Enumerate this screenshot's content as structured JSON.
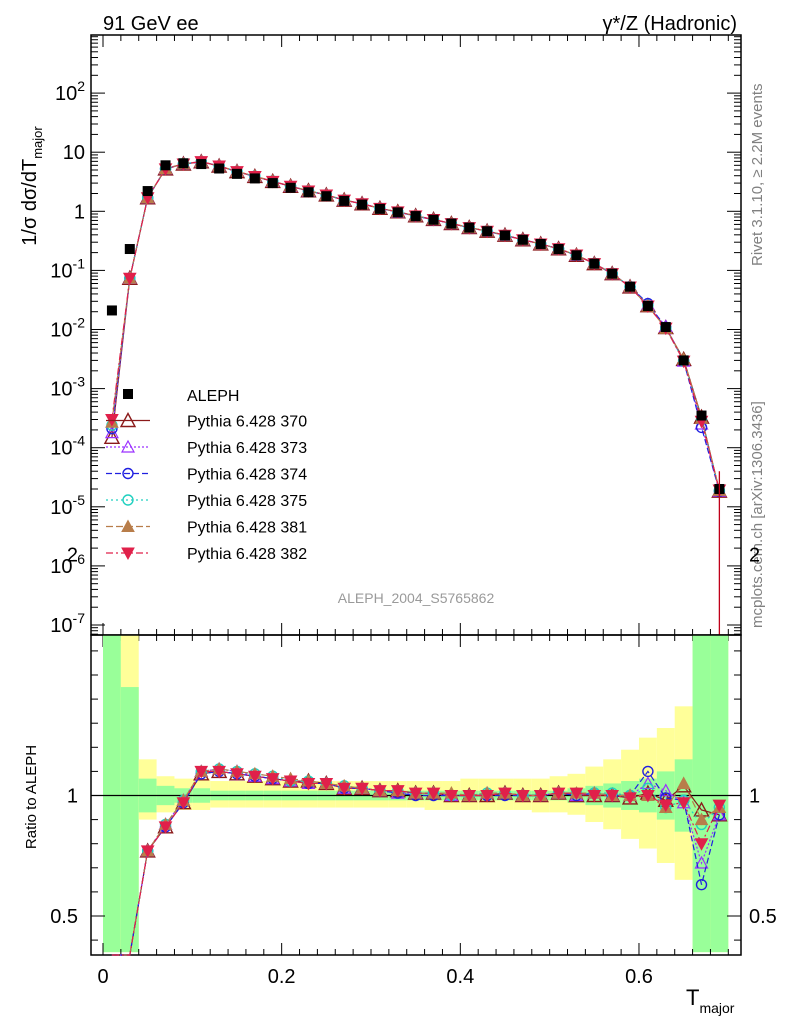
{
  "header": {
    "left": "91 GeV ee",
    "right": "γ*/Z (Hadronic)"
  },
  "side_labels": {
    "rivet": "Rivet 3.1.10, ≥ 2.2M events",
    "mcplots": "mcplots.cern.ch [arXiv:1306.3436]"
  },
  "chart_data": [
    {
      "type": "scatter",
      "panel": "main",
      "ylabel": "1/σ dσ/dT",
      "ylabel_sub": "major",
      "yscale": "log",
      "ylim": [
        8e-08,
        1000
      ],
      "xlim": [
        -0.02,
        0.72
      ],
      "y_tick_labels": [
        "10^-7",
        "10^-6",
        "10^-5",
        "10^-4",
        "10^-3",
        "10^-2",
        "10^-1",
        "1",
        "10",
        "10^2"
      ],
      "watermark": "ALEPH_2004_S5765862",
      "legend_position": "left-middle",
      "reference": {
        "name": "ALEPH",
        "x": [
          0.01,
          0.03,
          0.05,
          0.07,
          0.09,
          0.11,
          0.13,
          0.15,
          0.17,
          0.19,
          0.21,
          0.23,
          0.25,
          0.27,
          0.29,
          0.31,
          0.33,
          0.35,
          0.37,
          0.39,
          0.41,
          0.43,
          0.45,
          0.47,
          0.49,
          0.51,
          0.53,
          0.55,
          0.57,
          0.59,
          0.61,
          0.63,
          0.65,
          0.67,
          0.69
        ],
        "y": [
          0.021,
          0.23,
          2.2,
          6.0,
          6.5,
          6.3,
          5.3,
          4.3,
          3.6,
          3.0,
          2.5,
          2.1,
          1.8,
          1.5,
          1.3,
          1.1,
          0.96,
          0.83,
          0.72,
          0.62,
          0.53,
          0.46,
          0.39,
          0.33,
          0.28,
          0.23,
          0.18,
          0.13,
          0.088,
          0.053,
          0.025,
          0.011,
          0.003,
          0.00035,
          2e-05
        ]
      },
      "series": [
        {
          "name": "Pythia 6.428 370",
          "color": "#8b1a1a",
          "ratio": [
            0.0,
            0.32,
            0.77,
            0.87,
            0.97,
            1.09,
            1.1,
            1.09,
            1.08,
            1.07,
            1.06,
            1.06,
            1.05,
            1.03,
            1.03,
            1.02,
            1.02,
            1.01,
            1.01,
            1.0,
            1.0,
            1.0,
            1.01,
            1.0,
            1.0,
            1.01,
            1.0,
            1.0,
            1.0,
            0.99,
            1.01,
            0.98,
            1.04,
            0.94,
            0.92
          ]
        },
        {
          "name": "Pythia 6.428 373",
          "color": "#9b30ff",
          "ratio": [
            0.0,
            0.32,
            0.77,
            0.88,
            0.98,
            1.1,
            1.11,
            1.1,
            1.08,
            1.07,
            1.06,
            1.05,
            1.05,
            1.03,
            1.03,
            1.02,
            1.01,
            1.01,
            1.01,
            1.0,
            1.0,
            1.01,
            1.01,
            1.0,
            1.0,
            1.01,
            1.0,
            1.01,
            1.0,
            1.0,
            1.05,
            1.02,
            0.97,
            0.72,
            0.92
          ]
        },
        {
          "name": "Pythia 6.428 374",
          "color": "#2020e0",
          "ratio": [
            0.0,
            0.32,
            0.77,
            0.87,
            0.97,
            1.09,
            1.1,
            1.09,
            1.08,
            1.07,
            1.06,
            1.05,
            1.05,
            1.03,
            1.03,
            1.02,
            1.01,
            1.0,
            1.0,
            1.0,
            1.0,
            1.0,
            1.0,
            1.0,
            1.0,
            1.01,
            1.0,
            1.01,
            1.0,
            1.0,
            1.1,
            0.99,
            0.98,
            0.63,
            0.92
          ]
        },
        {
          "name": "Pythia 6.428 375",
          "color": "#20d0c0",
          "ratio": [
            0.0,
            0.32,
            0.77,
            0.88,
            0.98,
            1.1,
            1.11,
            1.1,
            1.09,
            1.08,
            1.06,
            1.06,
            1.05,
            1.04,
            1.03,
            1.02,
            1.02,
            1.01,
            1.01,
            1.0,
            1.0,
            1.01,
            1.01,
            1.0,
            1.0,
            1.01,
            1.01,
            1.01,
            1.01,
            1.0,
            1.03,
            0.95,
            0.98,
            0.88,
            0.95
          ]
        },
        {
          "name": "Pythia 6.428 381",
          "color": "#b87d4a",
          "ratio": [
            0.0,
            0.32,
            0.77,
            0.88,
            0.98,
            1.1,
            1.11,
            1.1,
            1.09,
            1.08,
            1.07,
            1.06,
            1.05,
            1.04,
            1.03,
            1.02,
            1.02,
            1.01,
            1.01,
            1.01,
            1.0,
            1.01,
            1.01,
            1.0,
            1.0,
            1.01,
            1.01,
            1.01,
            1.0,
            1.0,
            1.0,
            0.95,
            1.05,
            0.9,
            0.95
          ]
        },
        {
          "name": "Pythia 6.428 382",
          "color": "#e0204a",
          "ratio": [
            0.0,
            0.32,
            0.77,
            0.87,
            0.97,
            1.1,
            1.1,
            1.09,
            1.08,
            1.07,
            1.06,
            1.05,
            1.05,
            1.03,
            1.03,
            1.02,
            1.02,
            1.01,
            1.01,
            1.0,
            1.0,
            1.0,
            1.01,
            1.0,
            1.0,
            1.01,
            1.01,
            1.0,
            1.0,
            0.99,
            1.0,
            0.96,
            0.97,
            0.8,
            0.96
          ]
        }
      ]
    },
    {
      "type": "scatter",
      "panel": "ratio",
      "ylabel": "Ratio to ALEPH",
      "ylim": [
        0.35,
        2.3
      ],
      "y_tick_labels": [
        "0.5",
        "1",
        "2"
      ],
      "xlabel": "T",
      "xlabel_sub": "major",
      "x_tick_labels": [
        "0",
        "0.2",
        "0.4",
        "0.6"
      ],
      "bands": {
        "x_edges": [
          0.0,
          0.02,
          0.04,
          0.06,
          0.08,
          0.1,
          0.12,
          0.14,
          0.16,
          0.18,
          0.2,
          0.22,
          0.24,
          0.26,
          0.28,
          0.3,
          0.32,
          0.34,
          0.36,
          0.38,
          0.4,
          0.42,
          0.44,
          0.46,
          0.48,
          0.5,
          0.52,
          0.54,
          0.56,
          0.58,
          0.6,
          0.62,
          0.64,
          0.66,
          0.68,
          0.7
        ],
        "stat_lo": [
          0.35,
          0.35,
          0.93,
          0.96,
          0.97,
          0.97,
          0.98,
          0.98,
          0.98,
          0.98,
          0.98,
          0.98,
          0.98,
          0.98,
          0.98,
          0.98,
          0.98,
          0.98,
          0.98,
          0.98,
          0.98,
          0.98,
          0.98,
          0.98,
          0.98,
          0.98,
          0.97,
          0.96,
          0.95,
          0.94,
          0.93,
          0.9,
          0.85,
          0.35,
          0.35
        ],
        "stat_hi": [
          2.05,
          1.45,
          1.07,
          1.04,
          1.03,
          1.03,
          1.02,
          1.02,
          1.02,
          1.02,
          1.02,
          1.02,
          1.02,
          1.02,
          1.02,
          1.02,
          1.02,
          1.02,
          1.02,
          1.02,
          1.02,
          1.02,
          1.02,
          1.02,
          1.02,
          1.02,
          1.03,
          1.04,
          1.05,
          1.06,
          1.07,
          1.1,
          1.15,
          2.3,
          2.3
        ],
        "total_lo": [
          0.35,
          0.35,
          0.9,
          0.93,
          0.94,
          0.94,
          0.95,
          0.95,
          0.95,
          0.95,
          0.95,
          0.95,
          0.95,
          0.95,
          0.95,
          0.95,
          0.95,
          0.95,
          0.94,
          0.94,
          0.94,
          0.94,
          0.94,
          0.94,
          0.93,
          0.93,
          0.92,
          0.89,
          0.86,
          0.82,
          0.78,
          0.72,
          0.65,
          0.35,
          0.35
        ],
        "total_hi": [
          2.3,
          1.7,
          1.15,
          1.08,
          1.07,
          1.07,
          1.06,
          1.06,
          1.06,
          1.06,
          1.06,
          1.06,
          1.06,
          1.06,
          1.06,
          1.06,
          1.06,
          1.06,
          1.06,
          1.06,
          1.07,
          1.07,
          1.07,
          1.07,
          1.07,
          1.08,
          1.09,
          1.12,
          1.15,
          1.19,
          1.24,
          1.28,
          1.37,
          2.3,
          2.3
        ]
      }
    }
  ]
}
